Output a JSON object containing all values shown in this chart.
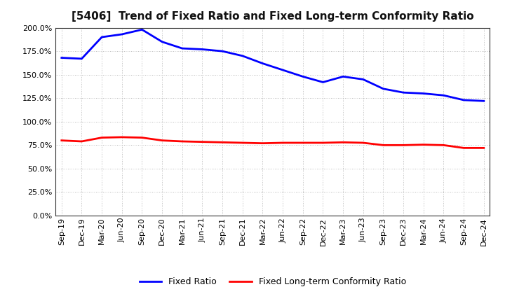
{
  "title": "[5406]  Trend of Fixed Ratio and Fixed Long-term Conformity Ratio",
  "x_labels": [
    "Sep-19",
    "Dec-19",
    "Mar-20",
    "Jun-20",
    "Sep-20",
    "Dec-20",
    "Mar-21",
    "Jun-21",
    "Sep-21",
    "Dec-21",
    "Mar-22",
    "Jun-22",
    "Sep-22",
    "Dec-22",
    "Mar-23",
    "Jun-23",
    "Sep-23",
    "Dec-23",
    "Mar-24",
    "Jun-24",
    "Sep-24",
    "Dec-24"
  ],
  "fixed_ratio": [
    168.0,
    167.0,
    190.0,
    193.0,
    198.0,
    185.0,
    178.0,
    177.0,
    175.0,
    170.0,
    162.0,
    155.0,
    148.0,
    142.0,
    148.0,
    145.0,
    135.0,
    131.0,
    130.0,
    128.0,
    123.0,
    122.0
  ],
  "fixed_lt_ratio": [
    80.0,
    79.0,
    83.0,
    83.5,
    83.0,
    80.0,
    79.0,
    78.5,
    78.0,
    77.5,
    77.0,
    77.5,
    77.5,
    77.5,
    78.0,
    77.5,
    75.0,
    75.0,
    75.5,
    75.0,
    72.0,
    72.0
  ],
  "fixed_ratio_color": "#0000ff",
  "fixed_lt_ratio_color": "#ff0000",
  "background_color": "#ffffff",
  "plot_bg_color": "#ffffff",
  "grid_color": "#aaaaaa",
  "ylim": [
    0,
    200
  ],
  "yticks": [
    0,
    25,
    50,
    75,
    100,
    125,
    150,
    175,
    200
  ],
  "legend_fixed_ratio": "Fixed Ratio",
  "legend_fixed_lt_ratio": "Fixed Long-term Conformity Ratio",
  "line_width": 2.0,
  "title_fontsize": 11,
  "tick_fontsize": 8,
  "legend_fontsize": 9
}
